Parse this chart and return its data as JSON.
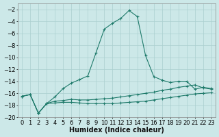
{
  "bg_color": "#cce8e8",
  "grid_color": "#aacfcf",
  "line_color": "#1e7a6a",
  "xlabel": "Humidex (Indice chaleur)",
  "xlabel_fontsize": 7.0,
  "tick_fontsize": 6.0,
  "ylim": [
    -20,
    -1
  ],
  "xlim": [
    -0.5,
    23.5
  ],
  "yticks": [
    -2,
    -4,
    -6,
    -8,
    -10,
    -12,
    -14,
    -16,
    -18,
    -20
  ],
  "xticks": [
    0,
    1,
    2,
    3,
    4,
    5,
    6,
    7,
    8,
    9,
    10,
    11,
    12,
    13,
    14,
    15,
    16,
    17,
    18,
    19,
    20,
    21,
    22,
    23
  ],
  "curve1_x": [
    0,
    1,
    2,
    3,
    4,
    5,
    6,
    7,
    8,
    9,
    10,
    11,
    12,
    13,
    14,
    15,
    16,
    17,
    18,
    19,
    20,
    21,
    22,
    23
  ],
  "curve1_y": [
    -16.5,
    -16.2,
    -19.3,
    -17.7,
    -16.6,
    -15.2,
    -14.3,
    -13.7,
    -13.1,
    -9.2,
    -5.3,
    -4.3,
    -3.5,
    -2.2,
    -3.2,
    -9.7,
    -13.2,
    -13.8,
    -14.2,
    -14.0,
    -14.0,
    -15.3,
    -15.0,
    -15.2
  ],
  "curve2_x": [
    0,
    1,
    2,
    3,
    4,
    5,
    6,
    7,
    8,
    9,
    10,
    11,
    12,
    13,
    14,
    15,
    16,
    17,
    18,
    19,
    20,
    21,
    22,
    23
  ],
  "curve2_y": [
    -16.5,
    -16.2,
    -19.3,
    -17.7,
    -17.3,
    -17.2,
    -17.0,
    -17.1,
    -17.1,
    -17.0,
    -16.9,
    -16.8,
    -16.6,
    -16.4,
    -16.2,
    -16.0,
    -15.8,
    -15.5,
    -15.3,
    -15.0,
    -14.8,
    -14.6,
    -15.1,
    -15.3
  ],
  "curve3_x": [
    0,
    1,
    2,
    3,
    4,
    5,
    6,
    7,
    8,
    9,
    10,
    11,
    12,
    13,
    14,
    15,
    16,
    17,
    18,
    19,
    20,
    21,
    22,
    23
  ],
  "curve3_y": [
    -16.5,
    -16.2,
    -19.3,
    -17.7,
    -17.6,
    -17.5,
    -17.5,
    -17.6,
    -17.7,
    -17.7,
    -17.7,
    -17.7,
    -17.6,
    -17.5,
    -17.4,
    -17.3,
    -17.1,
    -16.9,
    -16.7,
    -16.5,
    -16.3,
    -16.1,
    -16.0,
    -15.9
  ]
}
